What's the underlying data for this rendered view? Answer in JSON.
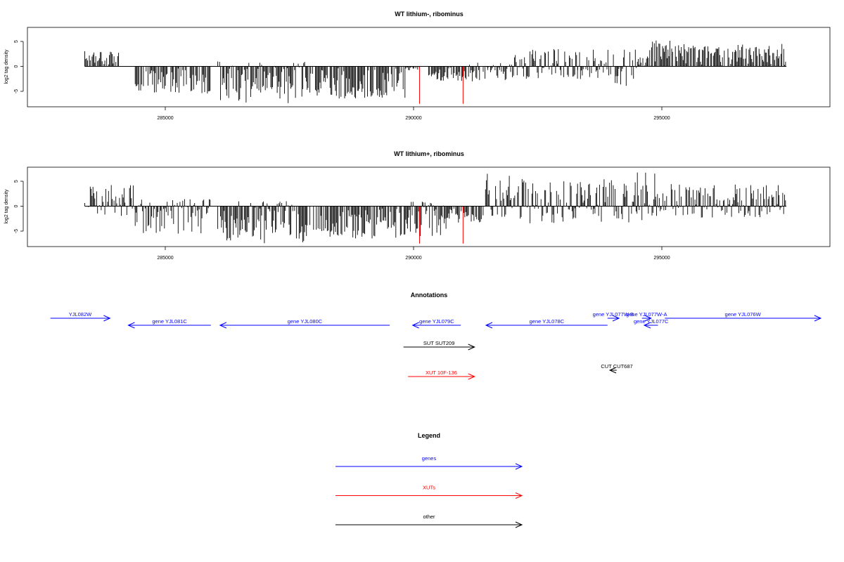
{
  "panels": [
    {
      "title": "WT lithium-, ribominus",
      "ylabel": "log2 tag density",
      "ytick_labels": [
        "-5",
        "0",
        "5"
      ],
      "xtick_labels": [
        "285000",
        "290000",
        "295000"
      ]
    },
    {
      "title": "WT lithium+, ribominus",
      "ylabel": "log2 tag density",
      "ytick_labels": [
        "-5",
        "0",
        "5"
      ],
      "xtick_labels": [
        "285000",
        "290000",
        "295000"
      ]
    }
  ],
  "annotations": {
    "title": "Annotations",
    "items": [
      {
        "label": "YJL082W",
        "start": 281800,
        "end": 283100,
        "strand": "+",
        "class": "genes"
      },
      {
        "label": "gene YJL081C",
        "start": 283500,
        "end": 285300,
        "strand": "-",
        "class": "genes"
      },
      {
        "label": "gene YJL080C",
        "start": 285500,
        "end": 289200,
        "strand": "-",
        "class": "genes"
      },
      {
        "label": "gene YJL079C",
        "start": 289700,
        "end": 290750,
        "strand": "-",
        "class": "genes"
      },
      {
        "label": "gene YJL078C",
        "start": 291300,
        "end": 293950,
        "strand": "-",
        "class": "genes"
      },
      {
        "label": "gene YJL077W-B",
        "start": 293950,
        "end": 294200,
        "strand": "+",
        "class": "genes"
      },
      {
        "label": "gene YJL077W-A",
        "start": 294700,
        "end": 294900,
        "strand": "+",
        "class": "genes"
      },
      {
        "label": "gene YJL077C",
        "start": 294750,
        "end": 295050,
        "strand": "-",
        "class": "genes"
      },
      {
        "label": "gene YJL076W",
        "start": 295200,
        "end": 298600,
        "strand": "+",
        "class": "genes"
      },
      {
        "label": "SUT SUT209",
        "start": 289500,
        "end": 291050,
        "strand": "+",
        "class": "other"
      },
      {
        "label": "XUT 10F-136",
        "start": 289600,
        "end": 291050,
        "strand": "+",
        "class": "XUTs"
      },
      {
        "label": "CUT CUT687",
        "start": 294000,
        "end": 294150,
        "strand": "-",
        "class": "other"
      }
    ]
  },
  "legend": {
    "title": "Legend",
    "items": [
      {
        "label": "genes",
        "class": "genes"
      },
      {
        "label": "XUTs",
        "class": "XUTs"
      },
      {
        "label": "other",
        "class": "other"
      }
    ]
  },
  "colors": {
    "genes": "#0000ff",
    "XUTs": "#ff0000",
    "other": "#000000",
    "bars": "#000000",
    "markers": "#ff0000"
  },
  "chart_data": [
    {
      "type": "bar",
      "title": "WT lithium-, ribominus",
      "ylabel": "log2 tag density",
      "xlabel": "",
      "xlim": [
        281300,
        298800
      ],
      "ylim": [
        -8,
        8
      ],
      "x_ticks": [
        285000,
        290000,
        295000
      ],
      "y_ticks": [
        -5,
        0,
        5
      ],
      "baseline": {
        "start": 282550,
        "end": 297850,
        "y": 0
      },
      "marker_lines": [
        {
          "x": 289850,
          "y_min": -7.5
        },
        {
          "x": 290800,
          "y_min": -7.5
        }
      ],
      "density_profile": [
        {
          "start": 282550,
          "end": 283300,
          "min": -0.5,
          "max": 3.5
        },
        {
          "start": 283650,
          "end": 285300,
          "min": -5.5,
          "max": 0
        },
        {
          "start": 285450,
          "end": 287400,
          "min": -7.5,
          "max": 1
        },
        {
          "start": 287400,
          "end": 289550,
          "min": -6.5,
          "max": 0
        },
        {
          "start": 289550,
          "end": 289850,
          "min": -0.8,
          "max": 0.2
        },
        {
          "start": 290050,
          "end": 290900,
          "min": -3,
          "max": 0.3
        },
        {
          "start": 290900,
          "end": 291900,
          "min": -3,
          "max": 0.8
        },
        {
          "start": 291900,
          "end": 293300,
          "min": -2.5,
          "max": 3.5
        },
        {
          "start": 293300,
          "end": 294600,
          "min": -4,
          "max": 3.5
        },
        {
          "start": 294600,
          "end": 294850,
          "min": -0.5,
          "max": 2
        },
        {
          "start": 294850,
          "end": 295500,
          "min": -0.5,
          "max": 5.5
        },
        {
          "start": 295500,
          "end": 297850,
          "min": -0.5,
          "max": 4.5
        }
      ],
      "seed": 17
    },
    {
      "type": "bar",
      "title": "WT lithium+, ribominus",
      "ylabel": "log2 tag density",
      "xlabel": "",
      "xlim": [
        281300,
        298800
      ],
      "ylim": [
        -8,
        8
      ],
      "x_ticks": [
        285000,
        290000,
        295000
      ],
      "y_ticks": [
        -5,
        0,
        5
      ],
      "baseline": {
        "start": 282550,
        "end": 297850,
        "y": 0
      },
      "marker_lines": [
        {
          "x": 289850,
          "y_min": -7.5
        },
        {
          "x": 290800,
          "y_min": -7.5
        }
      ],
      "density_profile": [
        {
          "start": 282550,
          "end": 283650,
          "min": -2,
          "max": 5
        },
        {
          "start": 283650,
          "end": 285300,
          "min": -5.5,
          "max": 1.5
        },
        {
          "start": 285450,
          "end": 287400,
          "min": -7.5,
          "max": 1
        },
        {
          "start": 287400,
          "end": 289550,
          "min": -6.5,
          "max": 0.5
        },
        {
          "start": 289550,
          "end": 290500,
          "min": -6,
          "max": 1
        },
        {
          "start": 290500,
          "end": 291250,
          "min": -3.5,
          "max": 0.5
        },
        {
          "start": 291250,
          "end": 292200,
          "min": -3,
          "max": 6.5
        },
        {
          "start": 292200,
          "end": 294600,
          "min": -3.5,
          "max": 5.5
        },
        {
          "start": 294600,
          "end": 295000,
          "min": -3,
          "max": 7.2
        },
        {
          "start": 295000,
          "end": 297850,
          "min": -2.5,
          "max": 4.5
        }
      ],
      "seed": 91
    }
  ]
}
